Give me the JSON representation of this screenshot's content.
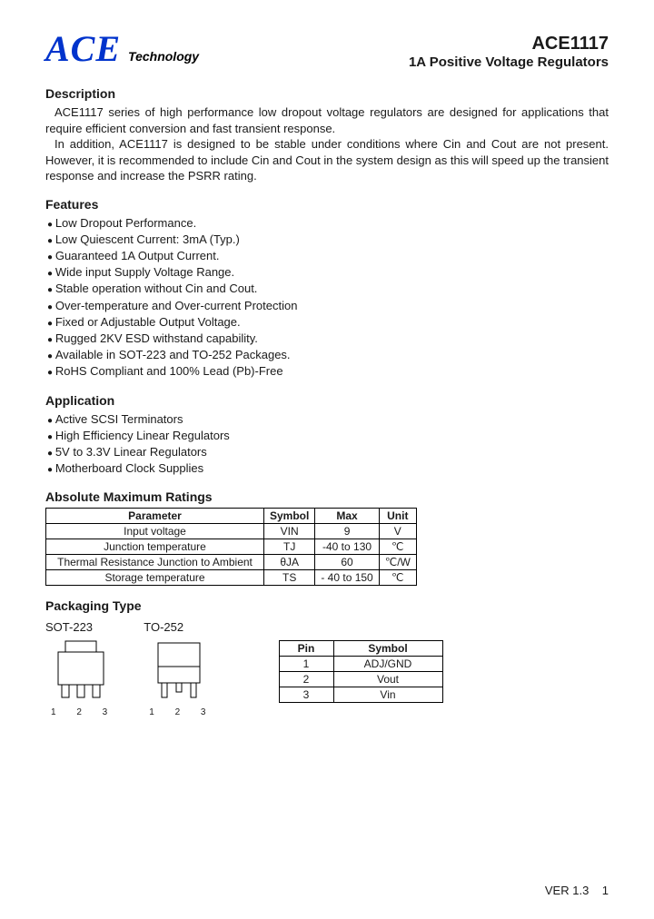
{
  "header": {
    "logo": "ACE",
    "logo_sub": "Technology",
    "part_no": "ACE1117",
    "subtitle": "1A Positive Voltage Regulators",
    "logo_color": "#0033cc"
  },
  "description": {
    "heading": "Description",
    "p1": "ACE1117 series of high performance low dropout voltage regulators are designed for applications that require efficient conversion and fast transient response.",
    "p2": "In addition, ACE1117 is designed to be stable under conditions where Cin and Cout are not present. However, it is recommended to include Cin and Cout in the system design as this will speed up the transient response and increase the PSRR rating."
  },
  "features": {
    "heading": "Features",
    "items": [
      "Low Dropout Performance.",
      "Low Quiescent Current: 3mA (Typ.)",
      "Guaranteed 1A Output Current.",
      "Wide input Supply Voltage Range.",
      "Stable operation without Cin and Cout.",
      "Over-temperature and Over-current Protection",
      "Fixed or Adjustable Output Voltage.",
      "Rugged 2KV ESD withstand capability.",
      "Available in SOT-223 and TO-252 Packages.",
      "RoHS Compliant and 100% Lead (Pb)-Free"
    ]
  },
  "application": {
    "heading": "Application",
    "items": [
      "Active SCSI Terminators",
      "High Efficiency Linear Regulators",
      "5V to 3.3V Linear Regulators",
      "Motherboard Clock Supplies"
    ]
  },
  "ratings": {
    "heading": "Absolute Maximum Ratings",
    "columns": [
      "Parameter",
      "Symbol",
      "Max",
      "Unit"
    ],
    "rows": [
      [
        "Input voltage",
        "VIN",
        "9",
        "V"
      ],
      [
        "Junction temperature",
        "TJ",
        "-40 to 130",
        "℃"
      ],
      [
        "Thermal Resistance Junction to Ambient",
        "θJA",
        "60",
        "℃/W"
      ],
      [
        "Storage temperature",
        "TS",
        "- 40 to 150",
        "℃"
      ]
    ]
  },
  "packaging": {
    "heading": "Packaging Type",
    "pkg1": "SOT-223",
    "pkg2": "TO-252",
    "pin_labels": "1   2   3",
    "pin_table": {
      "columns": [
        "Pin",
        "Symbol"
      ],
      "rows": [
        [
          "1",
          "ADJ/GND"
        ],
        [
          "2",
          "Vout"
        ],
        [
          "3",
          "Vin"
        ]
      ]
    }
  },
  "footer": {
    "version": "VER  1.3",
    "page": "1"
  }
}
